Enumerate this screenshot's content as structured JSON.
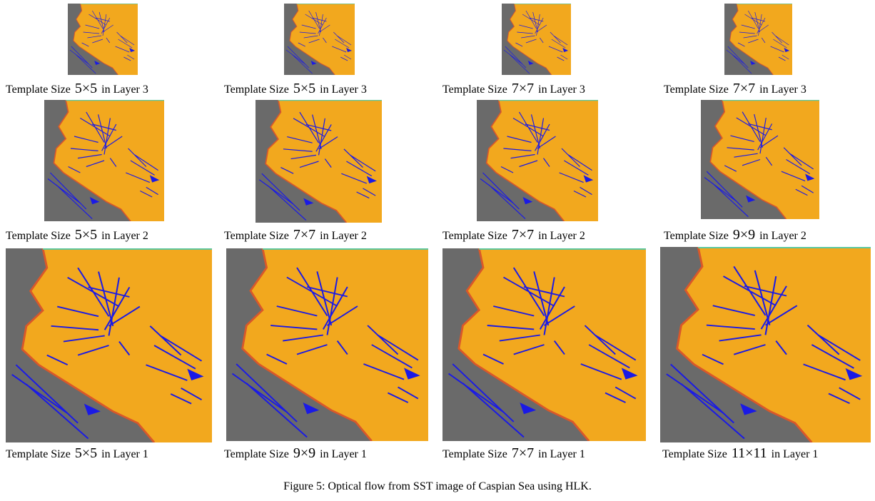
{
  "panels": [
    [
      {
        "prefix": "Template Size",
        "size": "5×5",
        "suffix": "in Layer 3"
      },
      {
        "prefix": "Template Size",
        "size": "5×5",
        "suffix": "in Layer 3"
      },
      {
        "prefix": "Template Size",
        "size": "7×7",
        "suffix": "in Layer 3"
      },
      {
        "prefix": "Template Size",
        "size": "7×7",
        "suffix": "in Layer 3"
      }
    ],
    [
      {
        "prefix": "Template Size",
        "size": "5×5",
        "suffix": "in Layer 2"
      },
      {
        "prefix": "Template Size",
        "size": "7×7",
        "suffix": "in Layer 2"
      },
      {
        "prefix": "Template Size",
        "size": "7×7",
        "suffix": "in Layer 2"
      },
      {
        "prefix": "Template Size",
        "size": "9×9",
        "suffix": "in Layer 2"
      }
    ],
    [
      {
        "prefix": "Template Size",
        "size": "5×5",
        "suffix": "in Layer 1"
      },
      {
        "prefix": "Template Size",
        "size": "9×9",
        "suffix": "in Layer 1"
      },
      {
        "prefix": "Template Size",
        "size": "7×7",
        "suffix": "in Layer 1"
      },
      {
        "prefix": "Template Size",
        "size": "11×11",
        "suffix": "in Layer 1"
      }
    ]
  ],
  "figure_caption": "Figure 5: Optical flow from SST image of Caspian Sea using HLK."
}
